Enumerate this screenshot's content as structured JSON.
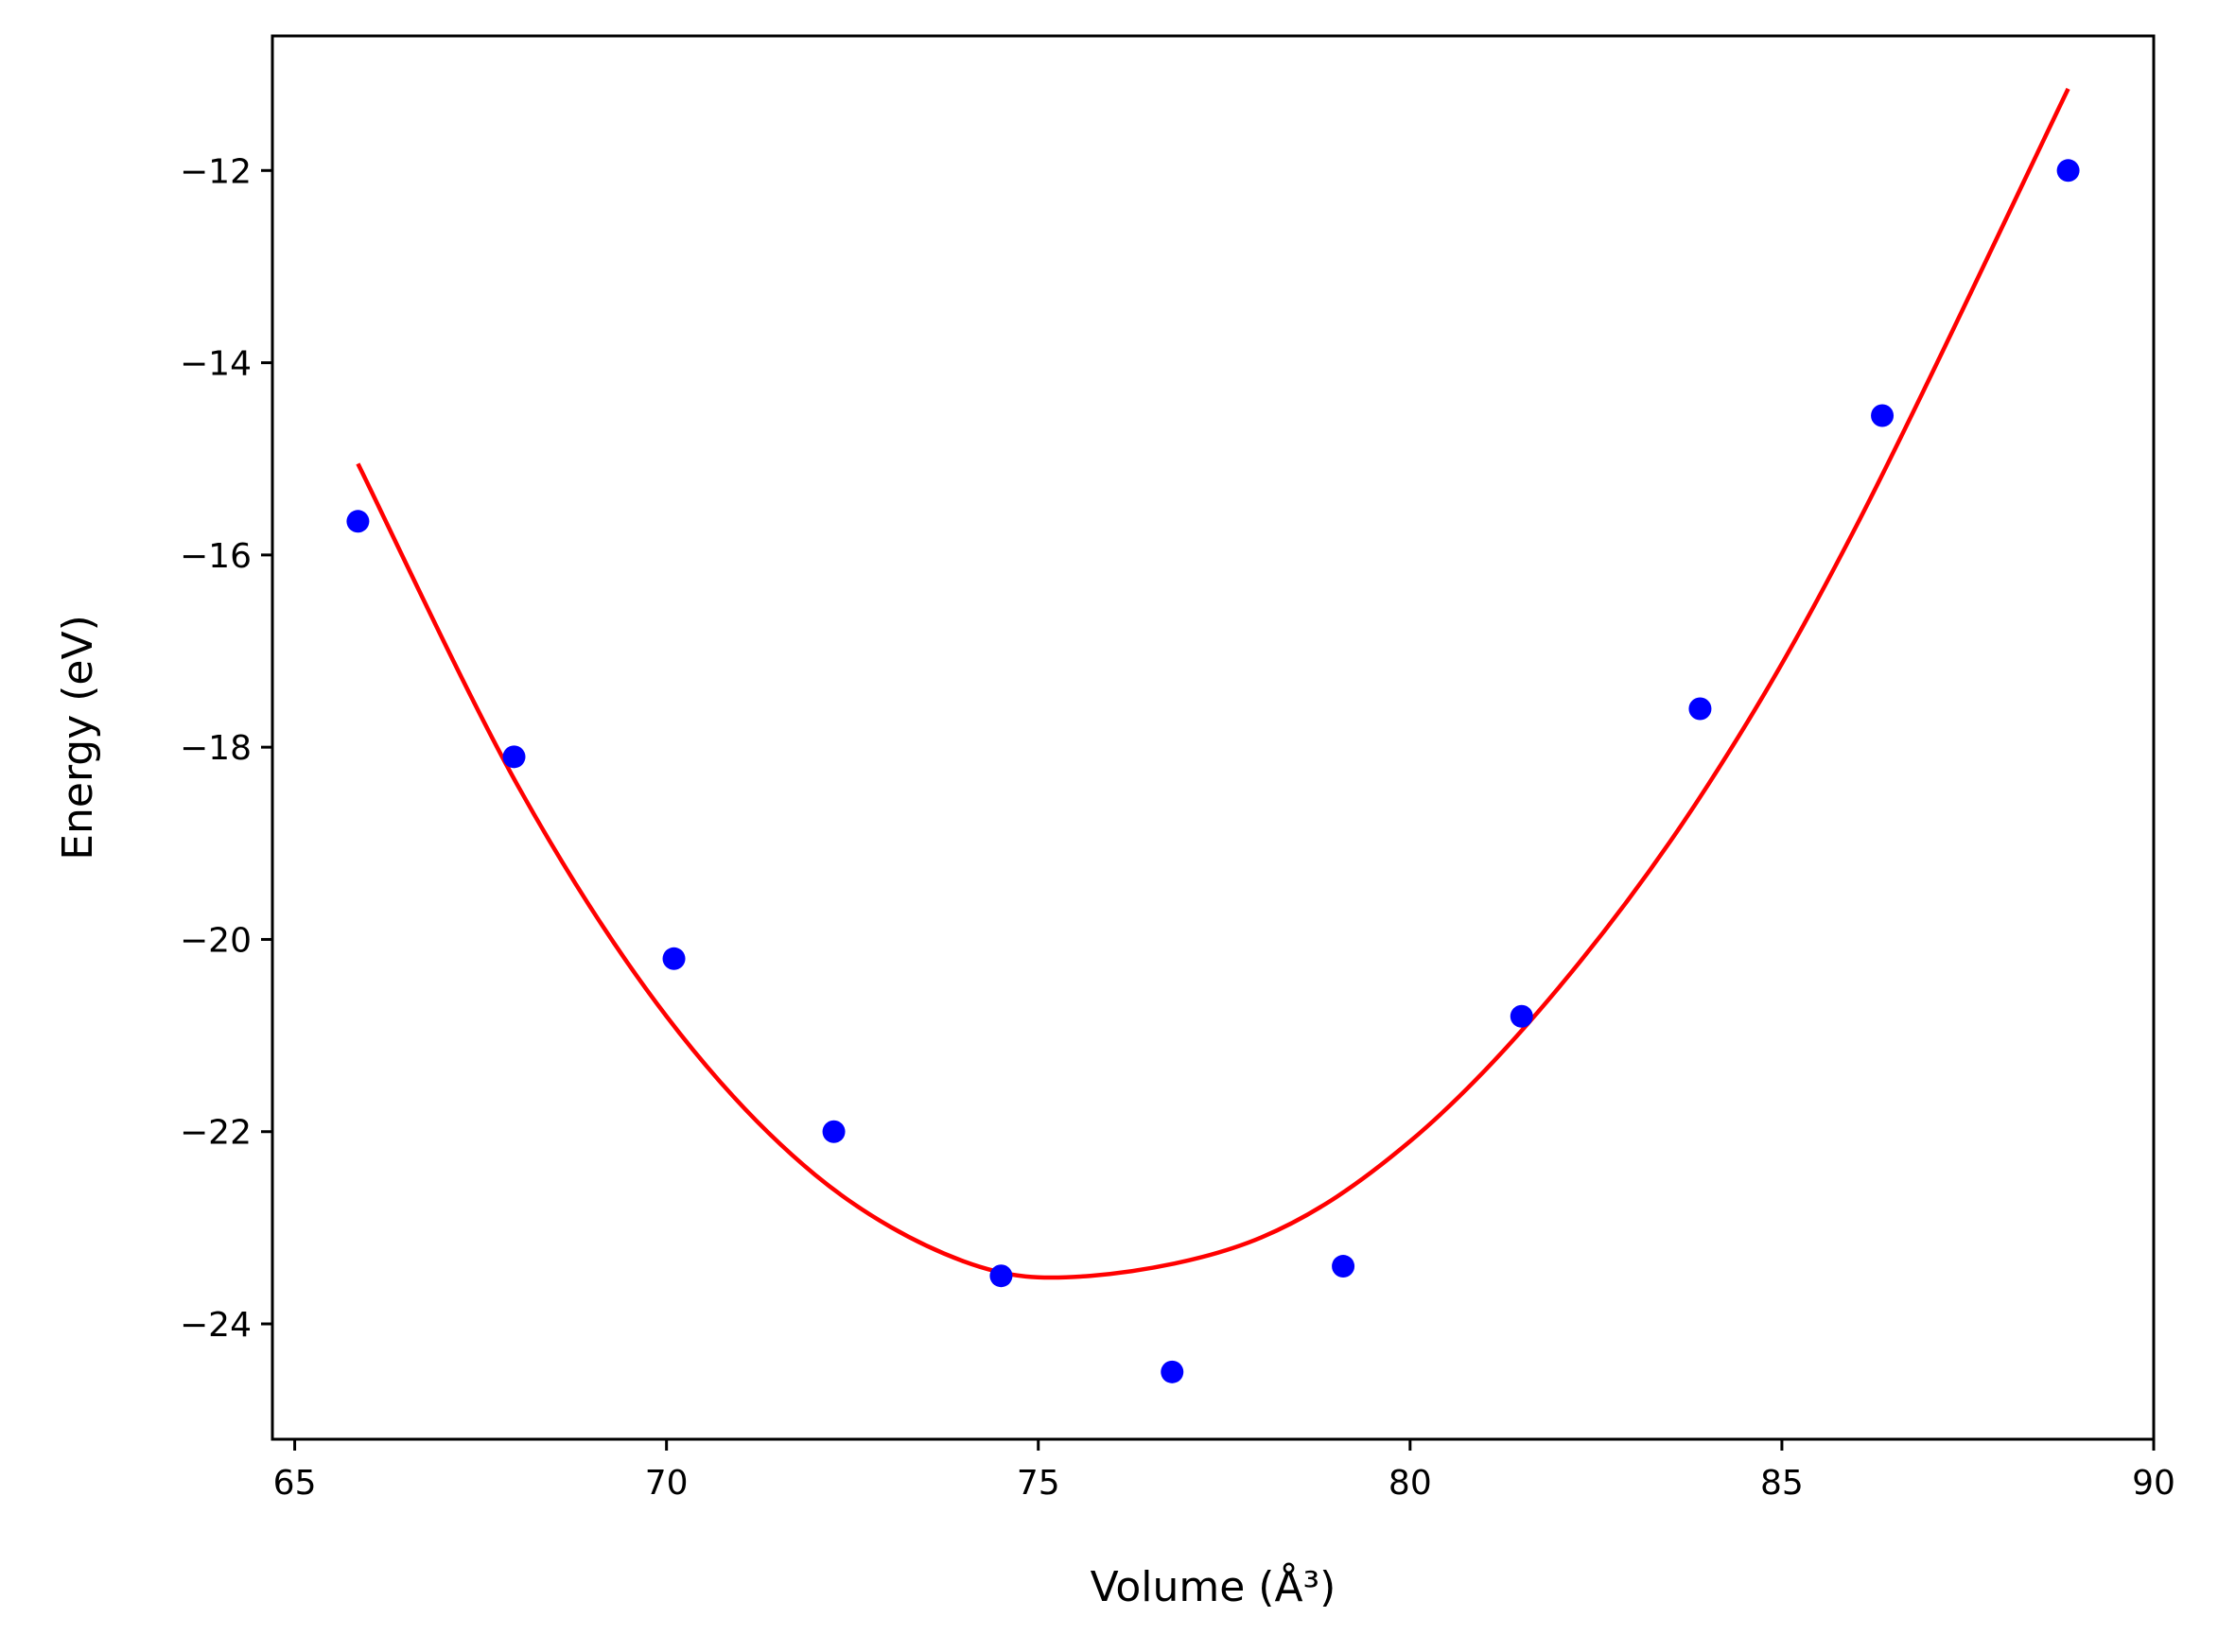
{
  "chart_data": {
    "type": "scatter",
    "xlabel": "Volume (Å³)",
    "ylabel": "Energy (eV)",
    "xlim": [
      64.7,
      90
    ],
    "ylim": [
      -25.2,
      -10.6
    ],
    "grid": false,
    "x_ticks": [
      65,
      70,
      75,
      80,
      85,
      90
    ],
    "y_ticks": [
      -24,
      -22,
      -20,
      -18,
      -16,
      -14,
      -12
    ],
    "x_tick_labels": [
      "65",
      "70",
      "75",
      "80",
      "85",
      "90"
    ],
    "y_tick_labels": [
      "−24",
      "−22",
      "−20",
      "−18",
      "−16",
      "−14",
      "−12"
    ],
    "series": [
      {
        "kind": "scatter",
        "color": "#0000ff",
        "x": [
          65.85,
          67.95,
          70.1,
          72.25,
          74.5,
          76.8,
          79.1,
          81.5,
          83.9,
          86.35,
          88.85
        ],
        "y": [
          -15.65,
          -18.1,
          -20.2,
          -22.0,
          -23.5,
          -24.5,
          -23.4,
          -20.8,
          -17.6,
          -14.55,
          -12.0
        ]
      },
      {
        "kind": "line",
        "color": "#ff0000",
        "x": [
          65.85,
          68.0,
          70.0,
          72.0,
          74.0,
          75.7,
          78.0,
          80.0,
          82.0,
          84.0,
          86.0,
          88.85
        ],
        "y": [
          -15.05,
          -18.4,
          -20.8,
          -22.45,
          -23.35,
          -23.5,
          -23.1,
          -22.1,
          -20.5,
          -18.4,
          -15.7,
          -11.15
        ]
      }
    ]
  }
}
